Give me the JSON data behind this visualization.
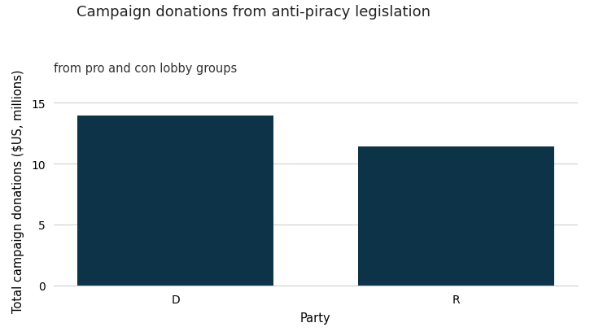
{
  "categories": [
    "D",
    "R"
  ],
  "values": [
    13.93,
    11.39
  ],
  "bar_color": "#0d3349",
  "title": "Campaign donations from anti-piracy legislation",
  "subtitle": "from pro and con lobby groups",
  "xlabel": "Party",
  "ylabel": "Total campaign donations ($US, millions)",
  "ylim": [
    0,
    15.5
  ],
  "yticks": [
    0,
    5,
    10,
    15
  ],
  "background_color": "#ffffff",
  "grid_color": "#d0d0d0",
  "title_fontsize": 13,
  "subtitle_fontsize": 10.5,
  "axis_label_fontsize": 10.5,
  "tick_fontsize": 10,
  "bar_width": 0.7
}
